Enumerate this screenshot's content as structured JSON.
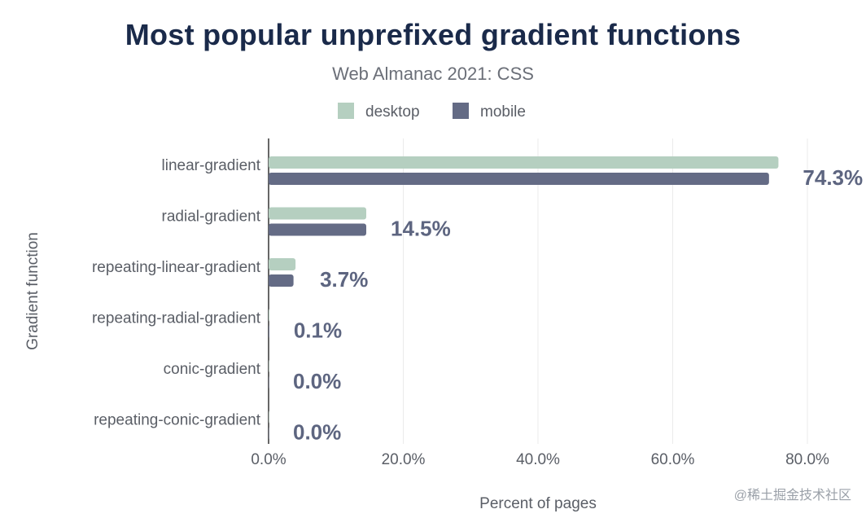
{
  "chart_data": {
    "type": "bar",
    "orientation": "horizontal",
    "title": "Most popular unprefixed gradient functions",
    "subtitle": "Web Almanac 2021: CSS",
    "xlabel": "Percent of pages",
    "ylabel": "Gradient function",
    "xlim": [
      0,
      85
    ],
    "xticks": [
      0,
      20,
      40,
      60,
      80
    ],
    "xtick_labels": [
      "0.0%",
      "20.0%",
      "40.0%",
      "60.0%",
      "80.0%"
    ],
    "grid": "vertical",
    "legend_position": "top-center",
    "categories": [
      "linear-gradient",
      "radial-gradient",
      "repeating-linear-gradient",
      "repeating-radial-gradient",
      "conic-gradient",
      "repeating-conic-gradient"
    ],
    "series": [
      {
        "name": "desktop",
        "color": "#b5cfc0",
        "values": [
          75.7,
          14.5,
          4.0,
          0.1,
          0.0,
          0.0
        ]
      },
      {
        "name": "mobile",
        "color": "#646b85",
        "values": [
          74.3,
          14.5,
          3.7,
          0.1,
          0.0,
          0.0
        ]
      }
    ],
    "data_labels": [
      "74.3%",
      "14.5%",
      "3.7%",
      "0.1%",
      "0.0%",
      "0.0%"
    ]
  },
  "watermark": "@稀土掘金技术社区"
}
